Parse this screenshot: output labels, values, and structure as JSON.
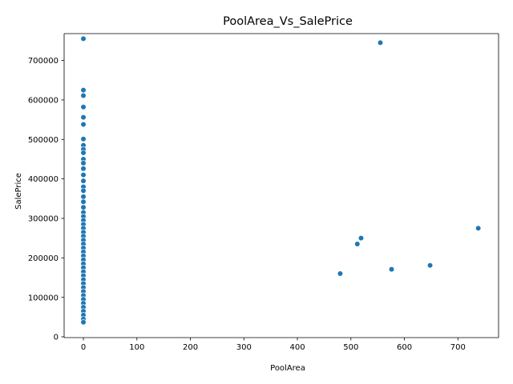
{
  "chart_data": {
    "type": "scatter",
    "title": "PoolArea_Vs_SalePrice",
    "xlabel": "PoolArea",
    "ylabel": "SalePrice",
    "xlim": [
      -36,
      776
    ],
    "ylim": [
      -2000,
      768000
    ],
    "xticks": [
      0,
      100,
      200,
      300,
      400,
      500,
      600,
      700
    ],
    "yticks": [
      0,
      100000,
      200000,
      300000,
      400000,
      500000,
      600000,
      700000
    ],
    "grid": false,
    "color": "#1f77b4",
    "points": [
      {
        "x": 0,
        "y": 755000
      },
      {
        "x": 0,
        "y": 625000
      },
      {
        "x": 0,
        "y": 611000
      },
      {
        "x": 0,
        "y": 582000
      },
      {
        "x": 0,
        "y": 556000
      },
      {
        "x": 0,
        "y": 538000
      },
      {
        "x": 0,
        "y": 501000
      },
      {
        "x": 0,
        "y": 485000
      },
      {
        "x": 0,
        "y": 475000
      },
      {
        "x": 0,
        "y": 466000
      },
      {
        "x": 0,
        "y": 450000
      },
      {
        "x": 0,
        "y": 440000
      },
      {
        "x": 0,
        "y": 426000
      },
      {
        "x": 0,
        "y": 410000
      },
      {
        "x": 0,
        "y": 395000
      },
      {
        "x": 0,
        "y": 380000
      },
      {
        "x": 0,
        "y": 370000
      },
      {
        "x": 0,
        "y": 355000
      },
      {
        "x": 0,
        "y": 342000
      },
      {
        "x": 0,
        "y": 328000
      },
      {
        "x": 0,
        "y": 315000
      },
      {
        "x": 0,
        "y": 305000
      },
      {
        "x": 0,
        "y": 295000
      },
      {
        "x": 0,
        "y": 285000
      },
      {
        "x": 0,
        "y": 275000
      },
      {
        "x": 0,
        "y": 265000
      },
      {
        "x": 0,
        "y": 255000
      },
      {
        "x": 0,
        "y": 245000
      },
      {
        "x": 0,
        "y": 235000
      },
      {
        "x": 0,
        "y": 225000
      },
      {
        "x": 0,
        "y": 215000
      },
      {
        "x": 0,
        "y": 205000
      },
      {
        "x": 0,
        "y": 195000
      },
      {
        "x": 0,
        "y": 185000
      },
      {
        "x": 0,
        "y": 175000
      },
      {
        "x": 0,
        "y": 165000
      },
      {
        "x": 0,
        "y": 155000
      },
      {
        "x": 0,
        "y": 145000
      },
      {
        "x": 0,
        "y": 135000
      },
      {
        "x": 0,
        "y": 125000
      },
      {
        "x": 0,
        "y": 115000
      },
      {
        "x": 0,
        "y": 105000
      },
      {
        "x": 0,
        "y": 95000
      },
      {
        "x": 0,
        "y": 85000
      },
      {
        "x": 0,
        "y": 75000
      },
      {
        "x": 0,
        "y": 65000
      },
      {
        "x": 0,
        "y": 55000
      },
      {
        "x": 0,
        "y": 45000
      },
      {
        "x": 0,
        "y": 37000
      },
      {
        "x": 555,
        "y": 745000
      },
      {
        "x": 738,
        "y": 274970
      },
      {
        "x": 519,
        "y": 250000
      },
      {
        "x": 512,
        "y": 235000
      },
      {
        "x": 648,
        "y": 181000
      },
      {
        "x": 576,
        "y": 171000
      },
      {
        "x": 480,
        "y": 160000
      }
    ]
  }
}
